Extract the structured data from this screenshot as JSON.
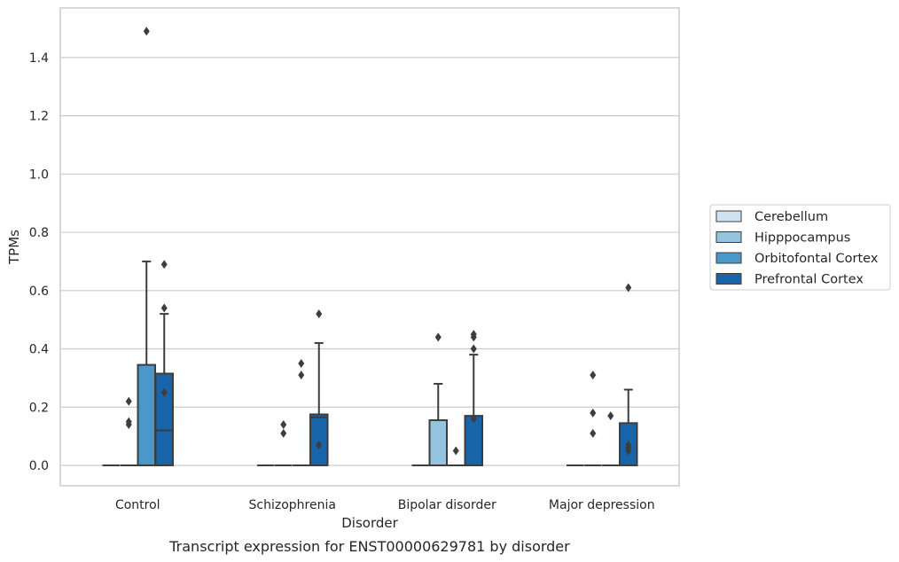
{
  "chart_data": {
    "type": "box",
    "caption": "Transcript expression for ENST00000629781 by disorder",
    "xlabel": "Disorder",
    "ylabel": "TPMs",
    "ylim": [
      -0.07,
      1.57
    ],
    "yticks": [
      0.0,
      0.2,
      0.4,
      0.6,
      0.8,
      1.0,
      1.2,
      1.4
    ],
    "ytick_labels": [
      "0.0",
      "0.2",
      "0.4",
      "0.6",
      "0.8",
      "1.0",
      "1.2",
      "1.4"
    ],
    "grid": true,
    "legend_position": "right",
    "categories": [
      "Control",
      "Schizophrenia",
      "Bipolar disorder",
      "Major depression"
    ],
    "series": [
      {
        "name": "Cerebellum",
        "color": "#d0e1f2",
        "boxes": [
          {
            "category": "Control",
            "q1": 0.0,
            "median": 0.0,
            "q3": 0.0,
            "whisker_low": 0.0,
            "whisker_high": 0.0,
            "outliers": []
          },
          {
            "category": "Schizophrenia",
            "q1": 0.0,
            "median": 0.0,
            "q3": 0.0,
            "whisker_low": 0.0,
            "whisker_high": 0.0,
            "outliers": []
          },
          {
            "category": "Bipolar disorder",
            "q1": 0.0,
            "median": 0.0,
            "q3": 0.0,
            "whisker_low": 0.0,
            "whisker_high": 0.0,
            "outliers": []
          },
          {
            "category": "Major depression",
            "q1": 0.0,
            "median": 0.0,
            "q3": 0.0,
            "whisker_low": 0.0,
            "whisker_high": 0.0,
            "outliers": []
          }
        ]
      },
      {
        "name": "Hipppocampus",
        "color": "#94c4df",
        "boxes": [
          {
            "category": "Control",
            "q1": 0.0,
            "median": 0.0,
            "q3": 0.0,
            "whisker_low": 0.0,
            "whisker_high": 0.0,
            "outliers": [
              0.22,
              0.15,
              0.14
            ]
          },
          {
            "category": "Schizophrenia",
            "q1": 0.0,
            "median": 0.0,
            "q3": 0.0,
            "whisker_low": 0.0,
            "whisker_high": 0.0,
            "outliers": [
              0.14,
              0.11
            ]
          },
          {
            "category": "Bipolar disorder",
            "q1": 0.0,
            "median": 0.0,
            "q3": 0.155,
            "whisker_low": 0.0,
            "whisker_high": 0.28,
            "outliers": [
              0.44
            ]
          },
          {
            "category": "Major depression",
            "q1": 0.0,
            "median": 0.0,
            "q3": 0.0,
            "whisker_low": 0.0,
            "whisker_high": 0.0,
            "outliers": [
              0.31,
              0.18,
              0.11
            ]
          }
        ]
      },
      {
        "name": "Orbitofontal Cortex",
        "color": "#4a98c9",
        "boxes": [
          {
            "category": "Control",
            "q1": 0.0,
            "median": 0.0,
            "q3": 0.345,
            "whisker_low": 0.0,
            "whisker_high": 0.7,
            "outliers": [
              1.49
            ]
          },
          {
            "category": "Schizophrenia",
            "q1": 0.0,
            "median": 0.0,
            "q3": 0.0,
            "whisker_low": 0.0,
            "whisker_high": 0.0,
            "outliers": [
              0.35,
              0.31
            ]
          },
          {
            "category": "Bipolar disorder",
            "q1": 0.0,
            "median": 0.0,
            "q3": 0.0,
            "whisker_low": 0.0,
            "whisker_high": 0.0,
            "outliers": [
              0.05
            ]
          },
          {
            "category": "Major depression",
            "q1": 0.0,
            "median": 0.0,
            "q3": 0.0,
            "whisker_low": 0.0,
            "whisker_high": 0.0,
            "outliers": [
              0.17
            ]
          }
        ]
      },
      {
        "name": "Prefrontal Cortex",
        "color": "#1764ab",
        "boxes": [
          {
            "category": "Control",
            "q1": 0.0,
            "median": 0.12,
            "q3": 0.315,
            "whisker_low": 0.0,
            "whisker_high": 0.52,
            "outliers": [
              0.69,
              0.54,
              0.25
            ]
          },
          {
            "category": "Schizophrenia",
            "q1": 0.0,
            "median": 0.165,
            "q3": 0.175,
            "whisker_low": 0.0,
            "whisker_high": 0.42,
            "outliers": [
              0.52,
              0.07
            ]
          },
          {
            "category": "Bipolar disorder",
            "q1": 0.0,
            "median": 0.0,
            "q3": 0.17,
            "whisker_low": 0.0,
            "whisker_high": 0.38,
            "outliers": [
              0.45,
              0.4,
              0.16,
              0.44
            ]
          },
          {
            "category": "Major depression",
            "q1": 0.0,
            "median": 0.0,
            "q3": 0.145,
            "whisker_low": 0.0,
            "whisker_high": 0.26,
            "outliers": [
              0.61,
              0.07,
              0.06,
              0.05
            ]
          }
        ]
      }
    ]
  }
}
